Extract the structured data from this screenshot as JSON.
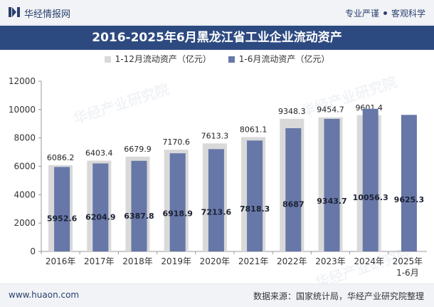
{
  "brand": {
    "name": "华经情报网",
    "tag_1": "专业严谨",
    "tag_2": "客观科学",
    "watermark": "华经产业研究院"
  },
  "footer": {
    "url": "www.huaon.com",
    "source": "数据来源：国家统计局，华经产业研究院整理"
  },
  "colors": {
    "annual": "#d9d9d9",
    "half_year": "#6677a8",
    "title_bg": "#2d4a80"
  },
  "chart_data": {
    "type": "bar",
    "title": "2016-2025年6月黑龙江省工业企业流动资产",
    "categories": [
      "2016年",
      "2017年",
      "2018年",
      "2019年",
      "2020年",
      "2021年",
      "2022年",
      "2023年",
      "2024年",
      "2025年"
    ],
    "category_sublabels": [
      "",
      "",
      "",
      "",
      "",
      "",
      "",
      "",
      "",
      "1-6月"
    ],
    "ylim": [
      0,
      12000
    ],
    "yticks": [
      0,
      2000,
      4000,
      6000,
      8000,
      10000,
      12000
    ],
    "legend_position": "top-center",
    "grid": false,
    "series": [
      {
        "name": "1-12月流动资产（亿元）",
        "values": [
          6086.2,
          6403.4,
          6679.9,
          7170.6,
          7613.3,
          8061.1,
          9348.3,
          9454.7,
          9601.4,
          null
        ],
        "labels": [
          "6086.2",
          "6403.4",
          "6679.9",
          "7170.6",
          "7613.3",
          "8061.1",
          "9348.3",
          "9454.7",
          "9601.4",
          ""
        ]
      },
      {
        "name": "1-6月流动资产（亿元）",
        "values": [
          5952.6,
          6204.9,
          6387.8,
          6918.9,
          7213.6,
          7818.3,
          8687,
          9343.7,
          10056.3,
          9625.3
        ],
        "labels": [
          "5952.6",
          "6204.9",
          "6387.8",
          "6918.9",
          "7213.6",
          "7818.3",
          "8687",
          "9343.7",
          "10056.3",
          "9625.3"
        ]
      }
    ]
  }
}
